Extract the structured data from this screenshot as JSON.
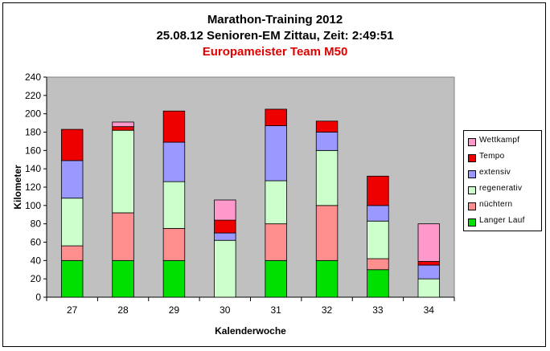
{
  "title": "Marathon-Training 2012",
  "subtitle": "25.08.12 Senioren-EM Zittau, Zeit: 2:49:51",
  "subtitle2": "Europameister Team M50",
  "chart_data": {
    "type": "bar",
    "stacked": true,
    "categories": [
      "27",
      "28",
      "29",
      "30",
      "31",
      "32",
      "33",
      "34"
    ],
    "series": [
      {
        "name": "Langer Lauf",
        "color": "#00e000",
        "values": [
          40,
          40,
          40,
          0,
          40,
          40,
          30,
          0
        ]
      },
      {
        "name": "nüchtern",
        "color": "#ff8f8f",
        "values": [
          16,
          52,
          35,
          0,
          40,
          60,
          12,
          0
        ]
      },
      {
        "name": "regenerativ",
        "color": "#ccffcc",
        "values": [
          52,
          90,
          51,
          62,
          47,
          60,
          41,
          20
        ]
      },
      {
        "name": "extensiv",
        "color": "#9999ff",
        "values": [
          41,
          0,
          43,
          8,
          60,
          20,
          17,
          15
        ]
      },
      {
        "name": "Tempo",
        "color": "#ee0000",
        "values": [
          34,
          4,
          34,
          14,
          18,
          12,
          32,
          4
        ]
      },
      {
        "name": "Wettkampf",
        "color": "#ff99cc",
        "values": [
          0,
          5,
          0,
          22,
          0,
          0,
          0,
          41
        ]
      }
    ],
    "xlabel": "Kalenderwoche",
    "ylabel": "Kilometer",
    "ylim": [
      0,
      240
    ],
    "yticks": [
      "0",
      "20",
      "40",
      "60",
      "80",
      "100",
      "120",
      "140",
      "160",
      "180",
      "200",
      "220",
      "240"
    ],
    "grid": false,
    "legend_position": "right",
    "plot_background": "#c0c0c0"
  }
}
